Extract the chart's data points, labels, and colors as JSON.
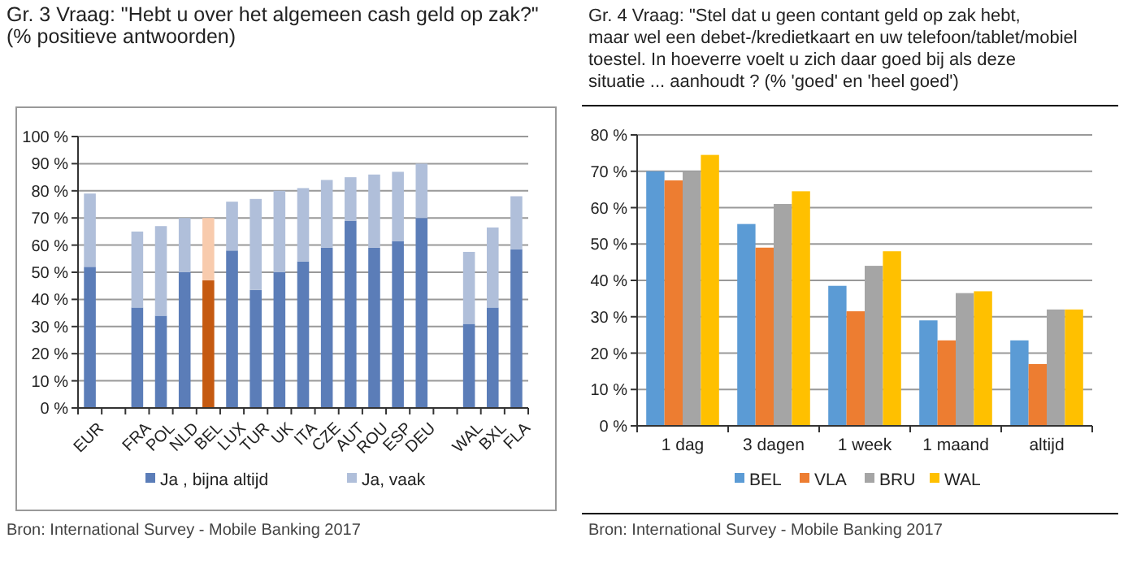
{
  "chart_data": [
    {
      "type": "bar",
      "stacked": true,
      "title": "Gr. 3    Vraag: \"Hebt u over het algemeen cash geld op zak?\"  (% positieve antwoorden)",
      "categories": [
        "EUR",
        null,
        "FRA",
        "POL",
        "NLD",
        "BEL",
        "LUX",
        "TUR",
        "UK",
        "ITA",
        "CZE",
        "AUT",
        "ROU",
        "ESP",
        "DEU",
        null,
        "WAL",
        "BXL",
        "FLA"
      ],
      "series": [
        {
          "name": "Ja , bijna altijd",
          "color": "#5b7db8",
          "colors": [
            "#5b7db8",
            null,
            "#5b7db8",
            "#5b7db8",
            "#5b7db8",
            "#c55a11",
            "#5b7db8",
            "#5b7db8",
            "#5b7db8",
            "#5b7db8",
            "#5b7db8",
            "#5b7db8",
            "#5b7db8",
            "#5b7db8",
            "#5b7db8",
            null,
            "#5b7db8",
            "#5b7db8",
            "#5b7db8"
          ],
          "values": [
            52,
            null,
            37,
            34,
            50,
            47,
            58,
            43.5,
            50,
            54,
            59,
            69,
            59,
            61.5,
            70,
            null,
            31,
            37,
            58.5
          ]
        },
        {
          "name": "Ja, vaak",
          "color": "#b0bfda",
          "colors": [
            "#b0bfda",
            null,
            "#b0bfda",
            "#b0bfda",
            "#b0bfda",
            "#f8cbad",
            "#b0bfda",
            "#b0bfda",
            "#b0bfda",
            "#b0bfda",
            "#b0bfda",
            "#b0bfda",
            "#b0bfda",
            "#b0bfda",
            "#b0bfda",
            null,
            "#b0bfda",
            "#b0bfda",
            "#b0bfda"
          ],
          "values": [
            27,
            null,
            28,
            33,
            20,
            23,
            18,
            33.5,
            30,
            27,
            25,
            16,
            27,
            25.5,
            20,
            null,
            26.5,
            29.5,
            19.5
          ]
        }
      ],
      "ylim": [
        0,
        100
      ],
      "yticks": [
        {
          "value": 0,
          "label": "0 %"
        },
        {
          "value": 10,
          "label": "10 %"
        },
        {
          "value": 20,
          "label": "20 %"
        },
        {
          "value": 30,
          "label": "30 %"
        },
        {
          "value": 40,
          "label": "40 %"
        },
        {
          "value": 50,
          "label": "50 %"
        },
        {
          "value": 60,
          "label": "60 %"
        },
        {
          "value": 70,
          "label": "70 %"
        },
        {
          "value": 80,
          "label": "80 %"
        },
        {
          "value": 90,
          "label": "90 %"
        },
        {
          "value": 100,
          "label": "100 %"
        }
      ],
      "grid": "y",
      "legend": "bottom",
      "annotations": [
        "Bron: International Survey - Mobile Banking 2017"
      ]
    },
    {
      "type": "bar",
      "title": "Gr. 4    Vraag: \"Stel dat u geen contant geld op zak hebt, maar wel een debet-/kredietkaart en uw telefoon/tablet/mobiel toestel. In hoeverre voelt u zich daar goed bij als deze situatie ... aanhoudt ? (% 'goed' en 'heel goed')",
      "categories": [
        "1 dag",
        "3 dagen",
        "1 week",
        "1 maand",
        "altijd"
      ],
      "series": [
        {
          "name": "BEL",
          "color": "#5b9bd5",
          "values": [
            70,
            55.5,
            38.5,
            29,
            23.5
          ]
        },
        {
          "name": "VLA",
          "color": "#ed7d31",
          "values": [
            67.5,
            49,
            31.5,
            23.5,
            17
          ]
        },
        {
          "name": "BRU",
          "color": "#a5a5a5",
          "values": [
            70,
            61,
            44,
            36.5,
            32
          ]
        },
        {
          "name": "WAL",
          "color": "#ffc000",
          "values": [
            74.5,
            64.5,
            48,
            37,
            32
          ]
        }
      ],
      "ylim": [
        0,
        80
      ],
      "yticks": [
        {
          "value": 0,
          "label": "0 %"
        },
        {
          "value": 10,
          "label": "10 %"
        },
        {
          "value": 20,
          "label": "20 %"
        },
        {
          "value": 30,
          "label": "30 %"
        },
        {
          "value": 40,
          "label": "40 %"
        },
        {
          "value": 50,
          "label": "50 %"
        },
        {
          "value": 60,
          "label": "60 %"
        },
        {
          "value": 70,
          "label": "70 %"
        },
        {
          "value": 80,
          "label": "80 %"
        }
      ],
      "grid": "y",
      "legend": "bottom",
      "annotations": [
        "Bron: International Survey - Mobile Banking 2017"
      ]
    }
  ]
}
